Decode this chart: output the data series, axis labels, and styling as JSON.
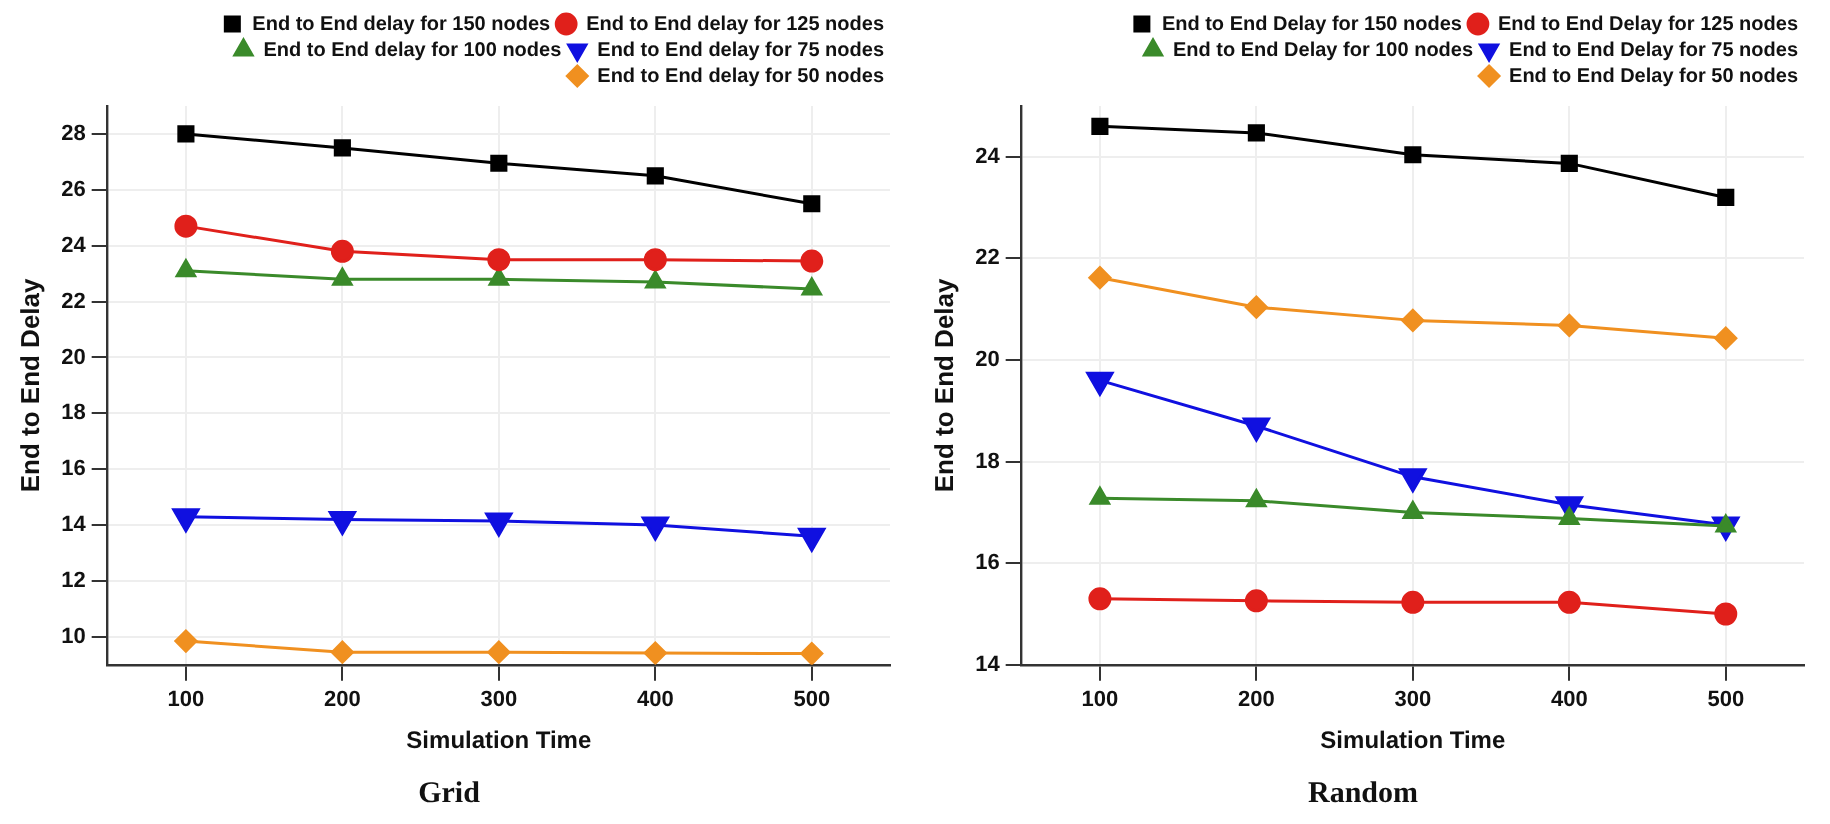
{
  "chart_data": [
    {
      "type": "line",
      "title": "Grid",
      "xlabel": "Simulation Time",
      "ylabel": "End to End Delay",
      "x": [
        100,
        200,
        300,
        400,
        500
      ],
      "xlim": [
        50,
        550
      ],
      "xticks": [
        100,
        200,
        300,
        400,
        500
      ],
      "ylim": [
        9,
        29
      ],
      "yticks": [
        10,
        12,
        14,
        16,
        18,
        20,
        22,
        24,
        26,
        28
      ],
      "grid": true,
      "legend": "top right",
      "series": [
        {
          "name": "End to End delay for 150 nodes",
          "color": "#000000",
          "marker": "square",
          "values": [
            28.0,
            27.5,
            26.95,
            26.5,
            25.5
          ]
        },
        {
          "name": "End to End delay for 125 nodes",
          "color": "#e0201b",
          "marker": "circle",
          "values": [
            24.7,
            23.8,
            23.5,
            23.5,
            23.45
          ]
        },
        {
          "name": "End to End delay for 100 nodes",
          "color": "#3a8a2a",
          "marker": "triangle",
          "values": [
            23.1,
            22.8,
            22.8,
            22.7,
            22.45
          ]
        },
        {
          "name": "End to End delay for 75 nodes",
          "color": "#1010e0",
          "marker": "triangle-down",
          "values": [
            14.3,
            14.2,
            14.15,
            14.0,
            13.6
          ]
        },
        {
          "name": "End to End delay for 50 nodes",
          "color": "#f09020",
          "marker": "diamond",
          "values": [
            9.85,
            9.45,
            9.45,
            9.42,
            9.4
          ]
        }
      ]
    },
    {
      "type": "line",
      "title": "Random",
      "xlabel": "Simulation Time",
      "ylabel": "End to End Delay",
      "x": [
        100,
        200,
        300,
        400,
        500
      ],
      "xlim": [
        50,
        550
      ],
      "xticks": [
        100,
        200,
        300,
        400,
        500
      ],
      "ylim": [
        14,
        25
      ],
      "yticks": [
        14,
        16,
        18,
        20,
        22,
        24
      ],
      "grid": true,
      "legend": "top right",
      "series": [
        {
          "name": "End to End Delay for 150 nodes",
          "color": "#000000",
          "marker": "square",
          "values": [
            24.6,
            24.47,
            24.04,
            23.87,
            23.2
          ]
        },
        {
          "name": "End to End Delay for 125 nodes",
          "color": "#e0201b",
          "marker": "circle",
          "values": [
            15.3,
            15.26,
            15.23,
            15.23,
            15.0
          ]
        },
        {
          "name": "End to End Delay for 100 nodes",
          "color": "#3a8a2a",
          "marker": "triangle",
          "values": [
            17.28,
            17.23,
            17.0,
            16.88,
            16.73
          ]
        },
        {
          "name": "End to End Delay for 75 nodes",
          "color": "#1010e0",
          "marker": "triangle-down",
          "values": [
            19.6,
            18.7,
            17.7,
            17.15,
            16.75
          ]
        },
        {
          "name": "End to End Delay for 50 nodes",
          "color": "#f09020",
          "marker": "diamond",
          "values": [
            21.62,
            21.04,
            20.78,
            20.68,
            20.43
          ]
        }
      ]
    }
  ]
}
